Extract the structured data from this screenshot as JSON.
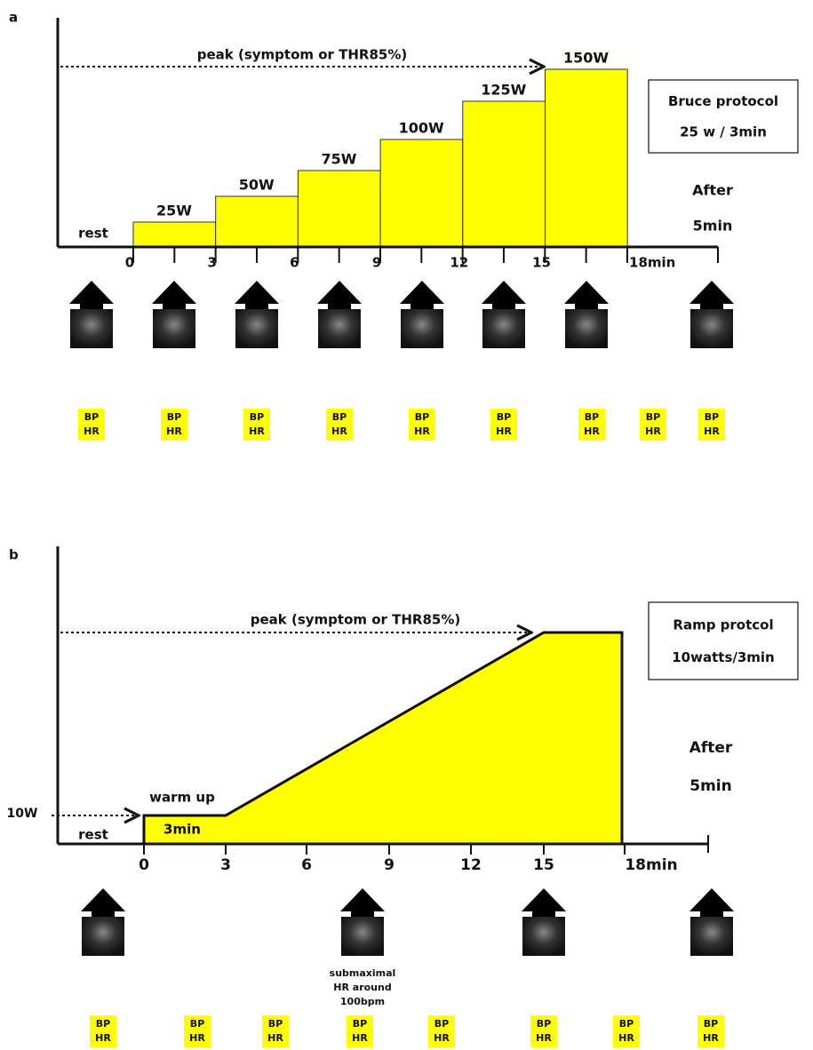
{
  "panel_a": {
    "label": "a",
    "peak": "peak (symptom or THR85%)",
    "rest": "rest",
    "steps": [
      "25W",
      "50W",
      "75W",
      "100W",
      "125W",
      "150W"
    ],
    "ticks": [
      "0",
      "3",
      "6",
      "9",
      "12",
      "15",
      "18min"
    ],
    "protocol": [
      "Bruce protocol",
      "25 w / 3min"
    ],
    "after": [
      "After",
      "5min"
    ],
    "monitor": [
      {
        "bp": "BP",
        "hr": "HR"
      },
      {
        "bp": "BP",
        "hr": "HR"
      },
      {
        "bp": "BP",
        "hr": "HR"
      },
      {
        "bp": "BP",
        "hr": "HR"
      },
      {
        "bp": "BP",
        "hr": "HR"
      },
      {
        "bp": "BP",
        "hr": "HR"
      },
      {
        "bp": "BP",
        "hr": "HR"
      },
      {
        "bp": "BP",
        "hr": "HR"
      },
      {
        "bp": "BP",
        "hr": "HR"
      }
    ]
  },
  "panel_b": {
    "label": "b",
    "peak": "peak (symptom or THR85%)",
    "rest": "rest",
    "start_level": "10W",
    "warm_up": "warm up",
    "warm_up_time": "3min",
    "ticks": [
      "0",
      "3",
      "6",
      "9",
      "12",
      "15",
      "18min"
    ],
    "protocol": [
      "Ramp protcol",
      "10watts/3min"
    ],
    "after": [
      "After",
      "5min"
    ],
    "note": [
      "submaximal",
      "HR around",
      "100bpm"
    ],
    "monitor": [
      {
        "bp": "BP",
        "hr": "HR"
      },
      {
        "bp": "BP",
        "hr": "HR"
      },
      {
        "bp": "BP",
        "hr": "HR"
      },
      {
        "bp": "BP",
        "hr": "HR"
      },
      {
        "bp": "BP",
        "hr": "HR"
      },
      {
        "bp": "BP",
        "hr": "HR"
      },
      {
        "bp": "BP",
        "hr": "HR"
      },
      {
        "bp": "BP",
        "hr": "HR"
      }
    ]
  }
}
